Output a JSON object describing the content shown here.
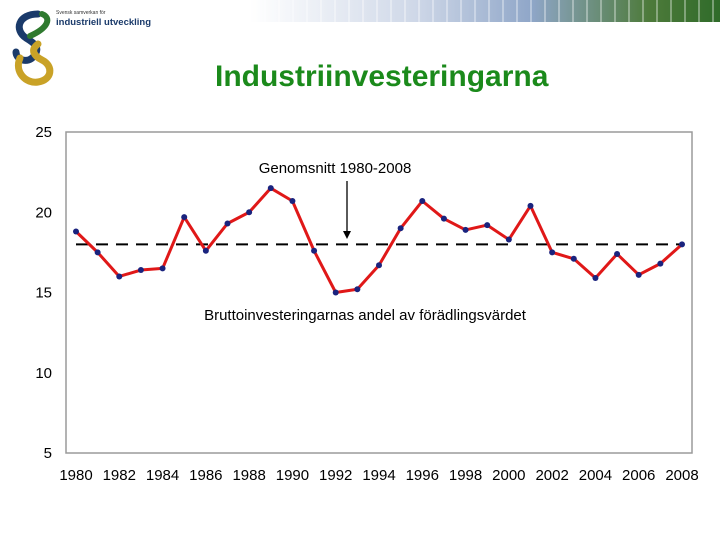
{
  "header": {
    "logo_small_text": "Svensk samverkan för",
    "logo_text": "industriell utveckling",
    "title": "Industriinvesteringarna"
  },
  "chart_data": {
    "type": "line",
    "title": "Industriinvesteringarna",
    "x": [
      1980,
      1981,
      1982,
      1983,
      1984,
      1985,
      1986,
      1987,
      1988,
      1989,
      1990,
      1991,
      1992,
      1993,
      1994,
      1995,
      1996,
      1997,
      1998,
      1999,
      2000,
      2001,
      2002,
      2003,
      2004,
      2005,
      2006,
      2007,
      2008
    ],
    "series": [
      {
        "name": "Bruttoinvesteringarnas andel av förädlingsvärdet",
        "color": "#e01818",
        "marker_color": "#1a237e",
        "values": [
          18.8,
          17.5,
          16.0,
          16.4,
          16.5,
          19.7,
          17.6,
          19.3,
          20.0,
          21.5,
          20.7,
          17.6,
          15.0,
          15.2,
          16.7,
          19.0,
          20.7,
          19.6,
          18.9,
          19.2,
          18.3,
          20.4,
          17.5,
          17.1,
          15.9,
          17.4,
          16.1,
          16.8,
          18.0
        ]
      }
    ],
    "reference_line": {
      "label": "Genomsnitt 1980-2008",
      "value": 18.0,
      "style": "dashed",
      "color": "#000000"
    },
    "annotations": {
      "average_label": "Genomsnitt 1980-2008",
      "series_label": "Bruttoinvesteringarnas andel av förädlingsvärdet"
    },
    "xlim": [
      1980,
      2008
    ],
    "ylim": [
      5,
      25
    ],
    "y_ticks": [
      5,
      10,
      15,
      20,
      25
    ],
    "x_ticks": [
      1980,
      1982,
      1984,
      1986,
      1988,
      1990,
      1992,
      1994,
      1996,
      1998,
      2000,
      2002,
      2004,
      2006,
      2008
    ],
    "grid": false,
    "legend": "none"
  }
}
